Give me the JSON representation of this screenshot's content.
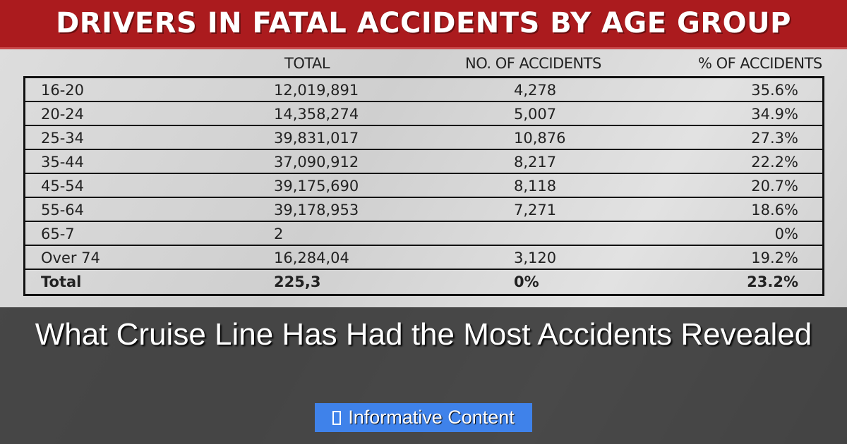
{
  "header": {
    "title": "DRIVERS IN FATAL ACCIDENTS BY AGE GROUP"
  },
  "columns": [
    "TOTAL",
    "NO. OF ACCIDENTS",
    "% OF ACCIDENTS"
  ],
  "rows": [
    {
      "age": "16-20",
      "total": "12,019,891",
      "accidents": "4,278",
      "pct": "35.6%"
    },
    {
      "age": "20-24",
      "total": "14,358,274",
      "accidents": "5,007",
      "pct": "34.9%"
    },
    {
      "age": "25-34",
      "total": "39,831,017",
      "accidents": "10,876",
      "pct": "27.3%"
    },
    {
      "age": "35-44",
      "total": "37,090,912",
      "accidents": "8,217",
      "pct": "22.2%"
    },
    {
      "age": "45-54",
      "total": "39,175,690",
      "accidents": "8,118",
      "pct": "20.7%"
    },
    {
      "age": "55-64",
      "total": "39,178,953",
      "accidents": "7,271",
      "pct": "18.6%"
    },
    {
      "age": "65-7",
      "total": "2",
      "accidents": "",
      "pct": "0%"
    },
    {
      "age": "Over 74",
      "total": "16,284,04",
      "accidents": "3,120",
      "pct": "19.2%"
    },
    {
      "age": "Total",
      "total": "225,3",
      "accidents": "0%",
      "pct": "23.2%"
    }
  ],
  "overlay": {
    "caption": "What Cruise Line Has Had the Most Accidents Revealed",
    "badge_icon": "info-icon",
    "badge_label": "Informative Content",
    "badge_color": "#3f82ea"
  },
  "colors": {
    "header": "#ab1b1e"
  }
}
